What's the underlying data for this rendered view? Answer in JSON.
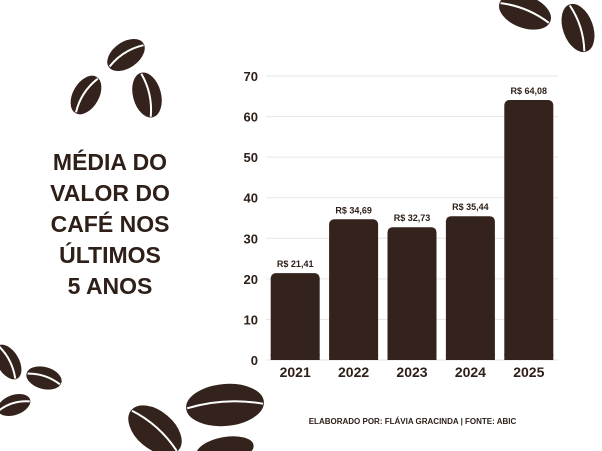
{
  "title_lines": [
    "MÉDIA DO",
    "VALOR DO",
    "CAFÉ NOS",
    "ÚLTIMOS",
    "5 ANOS"
  ],
  "source": "ELABORADO POR: FLÁVIA GRACINDA | FONTE: ABIC",
  "colors": {
    "bar": "#33231c",
    "text": "#2e2019",
    "grid": "#e6e6e6",
    "bean": "#33231c"
  },
  "chart_data": {
    "type": "bar",
    "title": "MÉDIA DO VALOR DO CAFÉ NOS ÚLTIMOS 5 ANOS",
    "categories": [
      "2021",
      "2022",
      "2023",
      "2024",
      "2025"
    ],
    "values": [
      21.41,
      34.69,
      32.73,
      35.44,
      64.08
    ],
    "data_labels": [
      "R$ 21,41",
      "R$ 34,69",
      "R$ 32,73",
      "R$ 35,44",
      "R$ 64,08"
    ],
    "yticks": [
      0,
      10,
      20,
      30,
      40,
      50,
      60,
      70
    ],
    "ylim": [
      0,
      70
    ],
    "xlabel": "",
    "ylabel": "",
    "grid": true
  }
}
